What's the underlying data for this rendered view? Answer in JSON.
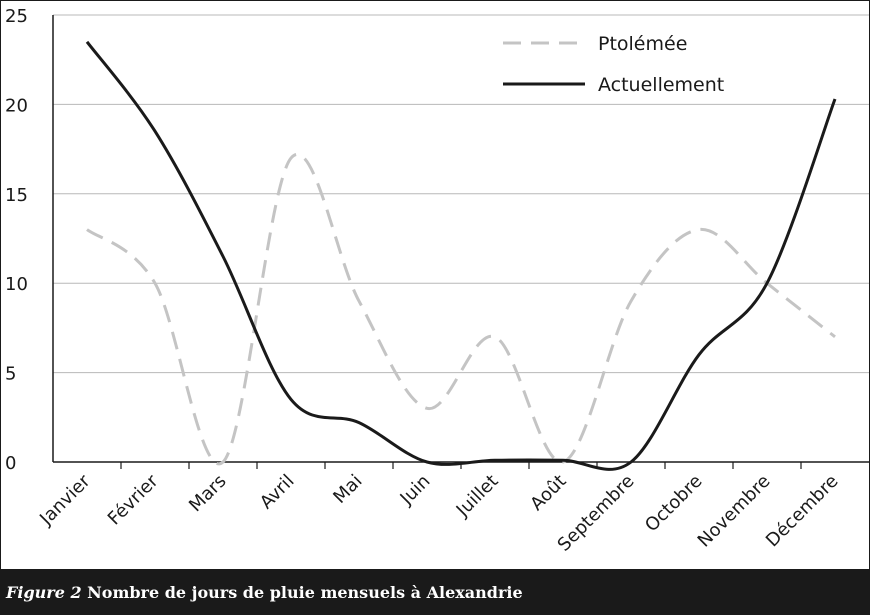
{
  "caption": {
    "label": "Figure 2",
    "text": "Nombre de jours de pluie mensuels à Alexandrie"
  },
  "chart_data": {
    "type": "line",
    "title": "",
    "xlabel": "",
    "ylabel": "",
    "categories": [
      "Janvier",
      "Février",
      "Mars",
      "Avril",
      "Mai",
      "Juin",
      "Juillet",
      "Août",
      "Septembre",
      "Octobre",
      "Novembre",
      "Décembre"
    ],
    "ylim": [
      0,
      25
    ],
    "yticks": [
      0,
      5,
      10,
      15,
      20,
      25
    ],
    "grid": true,
    "legend_position": "top-right",
    "series": [
      {
        "name": "Ptolémée",
        "style": "dashed",
        "color": "#c4c4c4",
        "values": [
          13,
          10,
          0,
          17,
          9,
          3,
          7,
          0,
          9,
          13,
          10,
          7
        ]
      },
      {
        "name": "Actuellement",
        "style": "solid",
        "color": "#1a1a1a",
        "values": [
          23.5,
          18.5,
          11.5,
          3.5,
          2.2,
          0,
          0.1,
          0.1,
          0,
          6,
          10,
          20.3
        ]
      }
    ]
  }
}
